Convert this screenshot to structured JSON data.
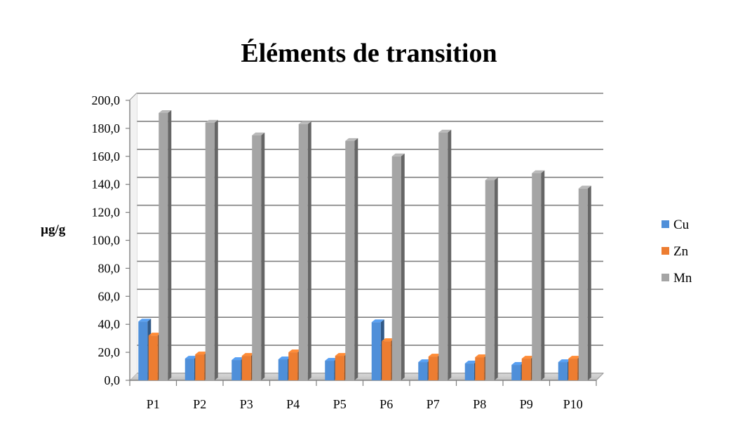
{
  "chart_data": {
    "type": "bar",
    "title": "Éléments de transition",
    "xlabel": "",
    "ylabel": "µg/g",
    "categories": [
      "P1",
      "P2",
      "P3",
      "P4",
      "P5",
      "P6",
      "P7",
      "P8",
      "P9",
      "P10"
    ],
    "ylim": [
      0,
      200
    ],
    "ytick_values": [
      0,
      20,
      40,
      60,
      80,
      100,
      120,
      140,
      160,
      180,
      200
    ],
    "ytick_labels": [
      "0,0",
      "20,0",
      "40,0",
      "60,0",
      "80,0",
      "100,0",
      "120,0",
      "140,0",
      "160,0",
      "180,0",
      "200,0"
    ],
    "grid": true,
    "legend_position": "right",
    "series": [
      {
        "name": "Cu",
        "color": "#4f8fd9",
        "values": [
          42,
          15.5,
          14.5,
          15,
          14,
          41.5,
          13,
          12,
          11,
          13
        ]
      },
      {
        "name": "Zn",
        "color": "#ed7d31",
        "values": [
          32,
          18.5,
          17.5,
          20,
          17.5,
          28,
          17,
          16.5,
          15.5,
          15.5
        ]
      },
      {
        "name": "Mn",
        "color": "#a5a5a5",
        "values": [
          191,
          184,
          175,
          183,
          171,
          160,
          177,
          143,
          148,
          137
        ]
      }
    ]
  }
}
